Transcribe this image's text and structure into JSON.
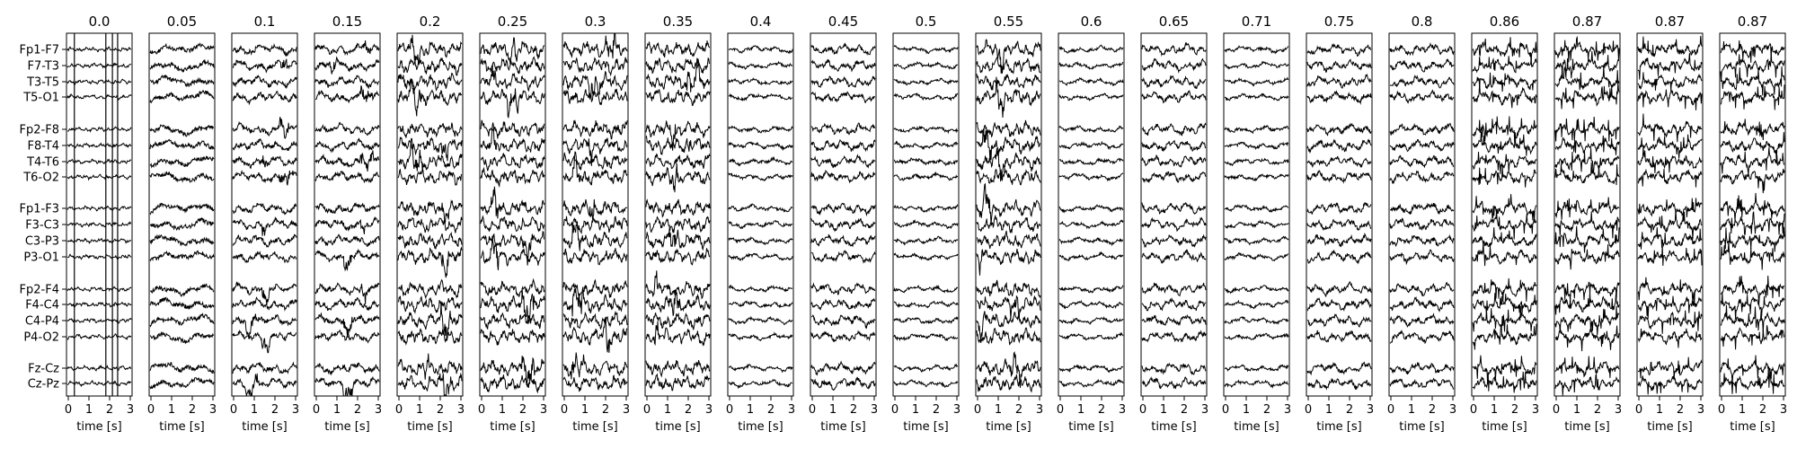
{
  "chart_data": {
    "type": "line",
    "xlabel": "time [s]",
    "xlim": [
      0,
      3
    ],
    "xticks": [
      "0",
      "1",
      "2",
      "3"
    ],
    "channels": [
      "Fp1-F7",
      "F7-T3",
      "T3-T5",
      "T5-O1",
      "Fp2-F8",
      "F8-T4",
      "T4-T6",
      "T6-O2",
      "Fp1-F3",
      "F3-C3",
      "C3-P3",
      "P3-O1",
      "Fp2-F4",
      "F4-C4",
      "C4-P4",
      "P4-O2",
      "Fz-Cz",
      "Cz-Pz"
    ],
    "channel_groups": [
      4,
      4,
      4,
      4,
      2
    ],
    "panels": [
      {
        "title": "0.0",
        "style": "artifact"
      },
      {
        "title": "0.05",
        "style": "slow"
      },
      {
        "title": "0.1",
        "style": "bursty"
      },
      {
        "title": "0.15",
        "style": "bursty"
      },
      {
        "title": "0.2",
        "style": "dense"
      },
      {
        "title": "0.25",
        "style": "dense"
      },
      {
        "title": "0.3",
        "style": "dense"
      },
      {
        "title": "0.35",
        "style": "dense"
      },
      {
        "title": "0.4",
        "style": "calm"
      },
      {
        "title": "0.45",
        "style": "mixed"
      },
      {
        "title": "0.5",
        "style": "calm"
      },
      {
        "title": "0.55",
        "style": "dense"
      },
      {
        "title": "0.6",
        "style": "calm"
      },
      {
        "title": "0.65",
        "style": "mixed"
      },
      {
        "title": "0.71",
        "style": "calm"
      },
      {
        "title": "0.75",
        "style": "mixed"
      },
      {
        "title": "0.8",
        "style": "mixed"
      },
      {
        "title": "0.86",
        "style": "spiky"
      },
      {
        "title": "0.87",
        "style": "spiky"
      },
      {
        "title": "0.87",
        "style": "spiky"
      },
      {
        "title": "0.87",
        "style": "spiky"
      }
    ]
  }
}
